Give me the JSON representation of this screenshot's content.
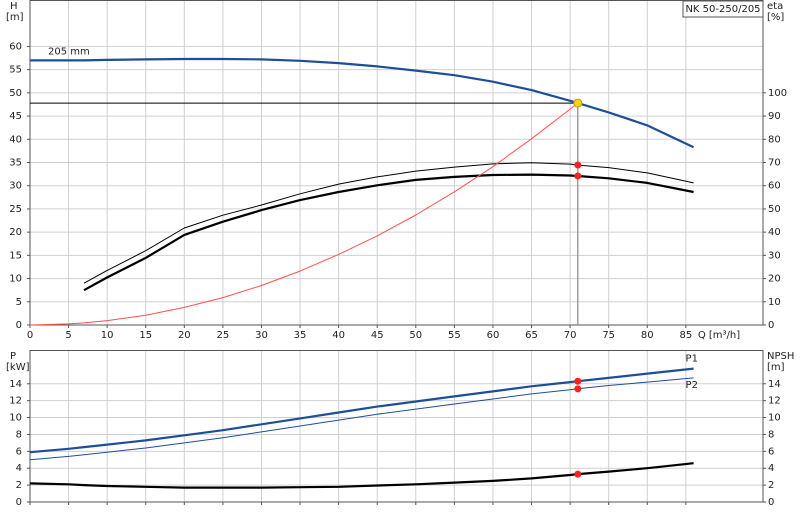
{
  "chart_data": [
    {
      "type": "line",
      "title": "NK 50-250/205",
      "xlabel": "Q [m³/h]",
      "ylabel": "H",
      "ylabel_unit": "[m]",
      "y2label": "eta",
      "y2label_unit": "[%]",
      "x": [
        0,
        5,
        7,
        10,
        15,
        20,
        25,
        30,
        35,
        40,
        45,
        50,
        55,
        60,
        65,
        70,
        71,
        75,
        80,
        86
      ],
      "xlim": [
        0,
        95
      ],
      "xticks": [
        0,
        5,
        10,
        15,
        20,
        25,
        30,
        35,
        40,
        45,
        50,
        55,
        60,
        65,
        70,
        75,
        80,
        85
      ],
      "show_xtick_labels": true,
      "ylim": [
        0,
        70
      ],
      "yticks": [
        0,
        5,
        10,
        15,
        20,
        25,
        30,
        35,
        40,
        45,
        50,
        55,
        60
      ],
      "y2lim": [
        0,
        140
      ],
      "y2ticks": [
        0,
        10,
        20,
        30,
        40,
        50,
        60,
        70,
        80,
        90,
        100
      ],
      "grid": true,
      "marker_color": "#ff2020",
      "duty_point": {
        "x": 71,
        "y": 47.8,
        "color": "#ffd21a"
      },
      "series": [
        {
          "name": "205 mm",
          "label_at": "start",
          "color": "#1f4e99",
          "style": "thick",
          "values": [
            57.0,
            57.0,
            57.0,
            57.1,
            57.2,
            57.3,
            57.3,
            57.2,
            56.9,
            56.4,
            55.7,
            54.8,
            53.8,
            52.4,
            50.6,
            48.3,
            47.8,
            45.8,
            43.0,
            38.3
          ]
        },
        {
          "color": "#000000",
          "style": "thin",
          "axis": "y2",
          "duty_marker": true,
          "values": [
            null,
            null,
            18.0,
            23.5,
            32.0,
            41.8,
            47.3,
            51.7,
            56.5,
            60.7,
            63.8,
            66.3,
            68.0,
            69.4,
            69.9,
            69.3,
            68.9,
            67.8,
            65.5,
            61.2
          ]
        },
        {
          "color": "#000000",
          "style": "thick",
          "axis": "y2",
          "duty_marker": true,
          "values": [
            null,
            null,
            15.0,
            20.5,
            28.9,
            38.8,
            44.5,
            49.5,
            53.8,
            57.3,
            60.2,
            62.5,
            63.8,
            64.6,
            64.8,
            64.4,
            64.2,
            63.2,
            61.2,
            57.3
          ]
        },
        {
          "color": "#ff5050",
          "style": "thin",
          "values": [
            0,
            0.24,
            0.46,
            0.95,
            2.1,
            3.8,
            5.9,
            8.5,
            11.6,
            15.2,
            19.2,
            23.7,
            28.7,
            34.1,
            40.1,
            46.5,
            47.8,
            null,
            null,
            null
          ]
        }
      ]
    },
    {
      "type": "line",
      "ylabel": "P",
      "ylabel_unit": "[kW]",
      "y2label": "NPSH",
      "y2label_unit": "[m]",
      "x": [
        0,
        5,
        7,
        10,
        15,
        20,
        25,
        30,
        35,
        40,
        45,
        50,
        55,
        60,
        65,
        70,
        71,
        75,
        80,
        86
      ],
      "xlim": [
        0,
        95
      ],
      "xticks": [
        0,
        5,
        10,
        15,
        20,
        25,
        30,
        35,
        40,
        45,
        50,
        55,
        60,
        65,
        70,
        75,
        80,
        85
      ],
      "show_xtick_labels": false,
      "ylim": [
        0,
        18
      ],
      "yticks": [
        0,
        2,
        4,
        6,
        8,
        10,
        12,
        14
      ],
      "y2lim": [
        0,
        18
      ],
      "y2ticks": [
        0,
        2,
        4,
        6,
        8,
        10,
        12,
        14
      ],
      "grid": true,
      "marker_color": "#ff2020",
      "duty_x": 71,
      "series": [
        {
          "name": "P1",
          "label_at": "end-above",
          "color": "#1f4e99",
          "style": "thick",
          "duty_marker": true,
          "values": [
            5.9,
            6.3,
            6.5,
            6.8,
            7.3,
            7.9,
            8.5,
            9.2,
            9.9,
            10.6,
            11.3,
            11.9,
            12.5,
            13.1,
            13.7,
            14.2,
            14.3,
            14.7,
            15.2,
            15.8
          ]
        },
        {
          "name": "P2",
          "label_at": "end-below",
          "color": "#1f4e99",
          "style": "thin",
          "duty_marker": true,
          "values": [
            5.0,
            5.4,
            5.6,
            5.9,
            6.4,
            7.0,
            7.6,
            8.3,
            9.0,
            9.7,
            10.4,
            11.0,
            11.6,
            12.2,
            12.8,
            13.3,
            13.4,
            13.8,
            14.2,
            14.7
          ]
        },
        {
          "color": "#000000",
          "style": "thick",
          "axis": "y2",
          "duty_marker": true,
          "values": [
            2.2,
            2.1,
            2.0,
            1.9,
            1.8,
            1.7,
            1.7,
            1.7,
            1.75,
            1.8,
            1.95,
            2.1,
            2.3,
            2.5,
            2.8,
            3.2,
            3.3,
            3.6,
            4.0,
            4.6
          ]
        }
      ]
    }
  ]
}
